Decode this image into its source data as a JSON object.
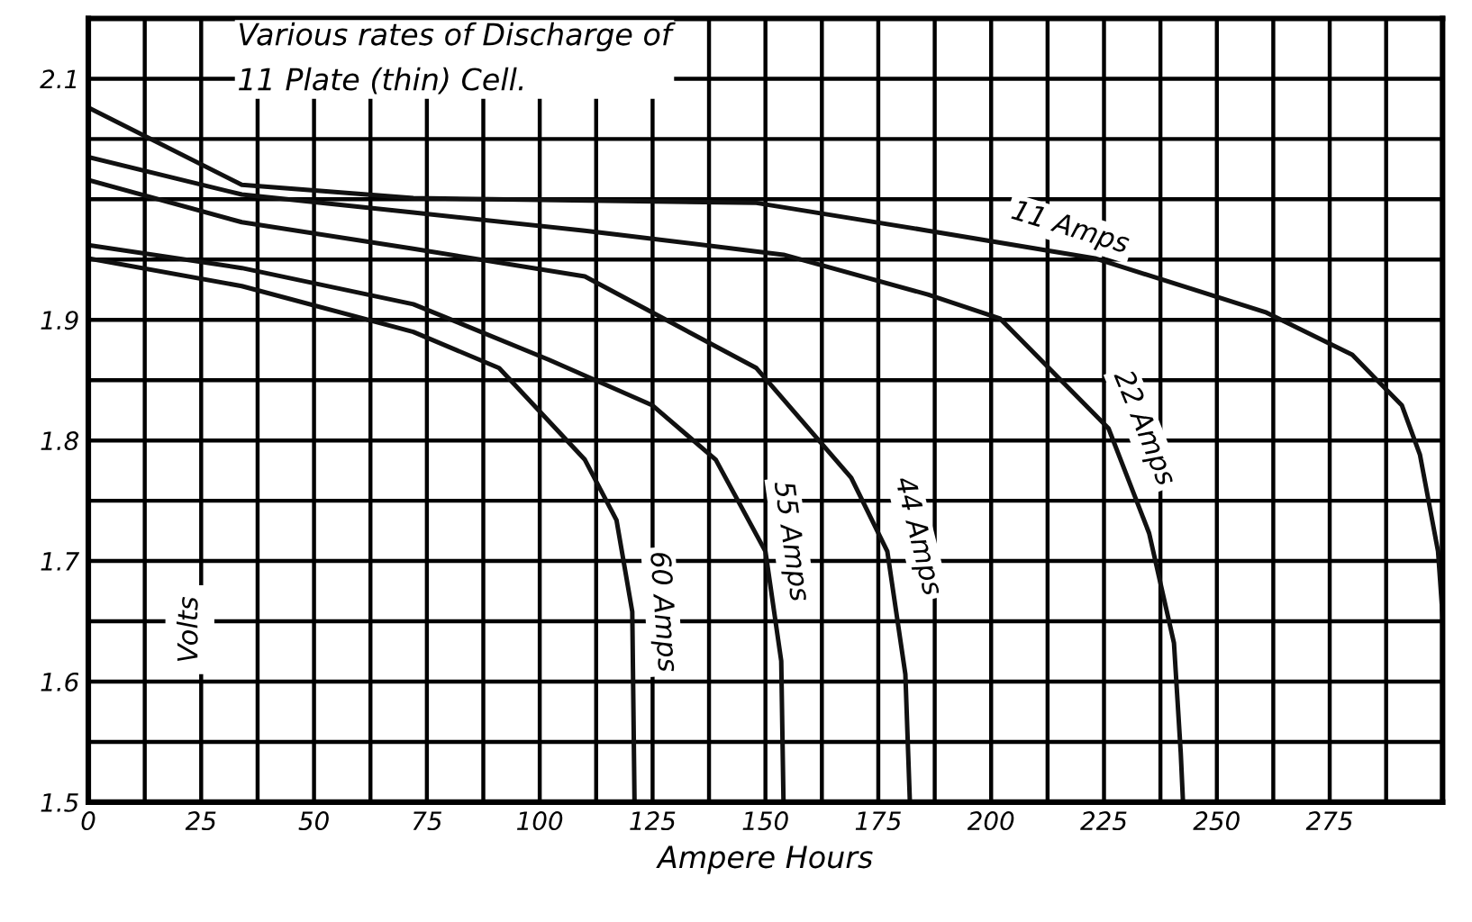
{
  "chart_data": {
    "type": "line",
    "title": "Various rates of Discharge of\n11 Plate (thin) Cell.",
    "xlabel": "Ampere Hours",
    "ylabel": "Volts",
    "series": [
      {
        "name": "11 Amps",
        "color": "#111111",
        "x": [
          0,
          34,
          72,
          148,
          186,
          223,
          261,
          280,
          291,
          295,
          299,
          300
        ],
        "values": [
          2.076,
          2.012,
          2.001,
          1.997,
          1.974,
          1.951,
          1.906,
          1.871,
          1.829,
          1.788,
          1.708,
          1.655
        ]
      },
      {
        "name": "22 Amps",
        "color": "#111111",
        "x": [
          0,
          34,
          72,
          110,
          154,
          186,
          202,
          226,
          235,
          240.5,
          242,
          242.5
        ],
        "values": [
          2.035,
          2.004,
          1.989,
          1.974,
          1.954,
          1.921,
          1.901,
          1.81,
          1.723,
          1.632,
          1.541,
          1.5
        ]
      },
      {
        "name": "44 Amps",
        "color": "#111111",
        "x": [
          0,
          34,
          72,
          110,
          148,
          169,
          177,
          181,
          182
        ],
        "values": [
          2.016,
          1.981,
          1.959,
          1.936,
          1.86,
          1.769,
          1.708,
          1.606,
          1.5
        ]
      },
      {
        "name": "55 Amps",
        "color": "#111111",
        "x": [
          0,
          34,
          72,
          102,
          125,
          139,
          150,
          153.5,
          154
        ],
        "values": [
          1.962,
          1.943,
          1.913,
          1.867,
          1.829,
          1.784,
          1.708,
          1.617,
          1.5
        ]
      },
      {
        "name": "60 Amps",
        "color": "#111111",
        "x": [
          0,
          34,
          72,
          91,
          110,
          117,
          120.5,
          121
        ],
        "values": [
          1.951,
          1.928,
          1.89,
          1.86,
          1.784,
          1.734,
          1.658,
          1.5
        ]
      }
    ],
    "xlim": [
      0,
      300
    ],
    "xticks": [
      0,
      {
        "value": 12.5,
        "label": null
      },
      25,
      {
        "value": 37.5,
        "label": null
      },
      50,
      {
        "value": 62.5,
        "label": null
      },
      75,
      {
        "value": 87.5,
        "label": null
      },
      100,
      {
        "value": 112.5,
        "label": null
      },
      125,
      {
        "value": 137.5,
        "label": null
      },
      150,
      {
        "value": 162.5,
        "label": null
      },
      175,
      {
        "value": 187.5,
        "label": null
      },
      200,
      {
        "value": 212.5,
        "label": null
      },
      225,
      {
        "value": 237.5,
        "label": null
      },
      250,
      {
        "value": 262.5,
        "label": null
      },
      275,
      {
        "value": 287.5,
        "label": null
      },
      {
        "value": 300,
        "label": null
      }
    ],
    "ylim": [
      1.5,
      2.15
    ],
    "yticks": [
      1.5,
      {
        "value": 1.55,
        "label": null
      },
      1.6,
      {
        "value": 1.65,
        "label": null
      },
      1.7,
      {
        "value": 1.75,
        "label": null
      },
      1.8,
      {
        "value": 1.85,
        "label": null
      },
      1.9,
      {
        "value": 1.95,
        "label": null
      },
      {
        "value": 2.0,
        "label": null
      },
      {
        "value": 2.05,
        "label": null
      },
      2.1
    ],
    "grid": true,
    "legend": false,
    "marker": "none",
    "line_style": "solid"
  }
}
